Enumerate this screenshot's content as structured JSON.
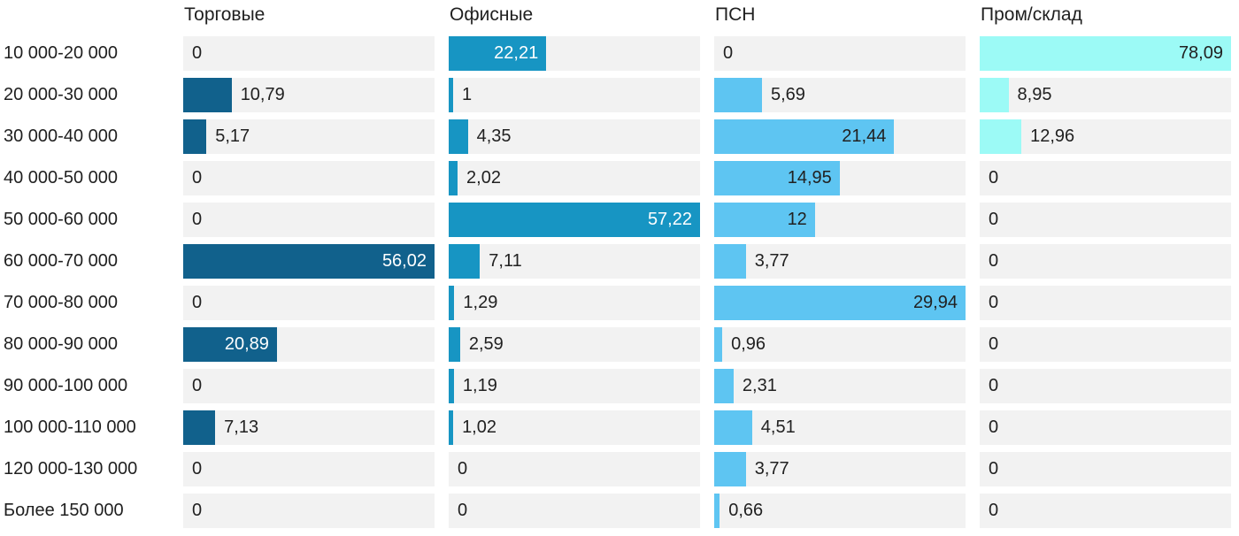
{
  "chart_data": {
    "type": "bar",
    "orientation": "horizontal",
    "title": "",
    "xlabel": "",
    "ylabel": "",
    "grid": false,
    "legend_position": "column-headers",
    "scaling": "each series scaled to its own max filling full track width",
    "track_color": "#f2f2f2",
    "text_color": "#1f1f1f",
    "inside_label_threshold_fraction": 0.28,
    "categories": [
      "10 000-20 000",
      "20 000-30 000",
      "30 000-40 000",
      "40 000-50 000",
      "50 000-60 000",
      "60 000-70 000",
      "70 000-80 000",
      "80 000-90 000",
      "90 000-100 000",
      "100 000-110 000",
      "120 000-130 000",
      "Более 150 000"
    ],
    "series": [
      {
        "name": "Торговые",
        "color": "#11618c",
        "inside_text_color": "#ffffff",
        "max": 56.02,
        "values": [
          0,
          10.79,
          5.17,
          0,
          0,
          56.02,
          0,
          20.89,
          0,
          7.13,
          0,
          0
        ],
        "labels": [
          "0",
          "10,79",
          "5,17",
          "0",
          "0",
          "56,02",
          "0",
          "20,89",
          "0",
          "7,13",
          "0",
          "0"
        ]
      },
      {
        "name": "Офисные",
        "color": "#1795c3",
        "inside_text_color": "#ffffff",
        "max": 57.22,
        "values": [
          22.21,
          1,
          4.35,
          2.02,
          57.22,
          7.11,
          1.29,
          2.59,
          1.19,
          1.02,
          0,
          0
        ],
        "labels": [
          "22,21",
          "1",
          "4,35",
          "2,02",
          "57,22",
          "7,11",
          "1,29",
          "2,59",
          "1,19",
          "1,02",
          "0",
          "0"
        ]
      },
      {
        "name": "ПСН",
        "color": "#5ec5f2",
        "inside_text_color": "#212121",
        "max": 29.94,
        "values": [
          0,
          5.69,
          21.44,
          14.95,
          12,
          3.77,
          29.94,
          0.96,
          2.31,
          4.51,
          3.77,
          0.66
        ],
        "labels": [
          "0",
          "5,69",
          "21,44",
          "14,95",
          "12",
          "3,77",
          "29,94",
          "0,96",
          "2,31",
          "4,51",
          "3,77",
          "0,66"
        ]
      },
      {
        "name": "Пром/склад",
        "color": "#9cfaf6",
        "inside_text_color": "#212121",
        "max": 78.09,
        "values": [
          78.09,
          8.95,
          12.96,
          0,
          0,
          0,
          0,
          0,
          0,
          0,
          0,
          0
        ],
        "labels": [
          "78,09",
          "8,95",
          "12,96",
          "0",
          "0",
          "0",
          "0",
          "0",
          "0",
          "0",
          "0",
          "0"
        ]
      }
    ]
  }
}
